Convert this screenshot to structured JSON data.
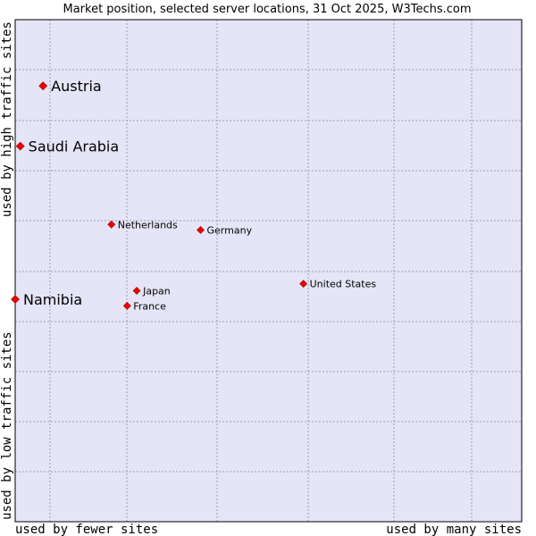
{
  "chart_data": {
    "type": "scatter",
    "title": "Market position, selected server locations, 31 Oct 2025, W3Techs.com",
    "xlabel_left": "used by fewer sites",
    "xlabel_right": "used by many sites",
    "ylabel_bottom": "used by low traffic sites",
    "ylabel_top": "used by high traffic sites",
    "xlim": [
      0,
      100
    ],
    "ylim": [
      0,
      100
    ],
    "grid": true,
    "colors": {
      "plot_bg": "#e5e5f7",
      "point": "#ee0000",
      "point_edge": "#990000",
      "grid": "#9d9db5",
      "frame": "#000000"
    },
    "points": [
      {
        "name": "Austria",
        "x": 5.5,
        "y": 86.8,
        "size": "large"
      },
      {
        "name": "Saudi Arabia",
        "x": 1.0,
        "y": 74.8,
        "size": "large"
      },
      {
        "name": "Netherlands",
        "x": 19.0,
        "y": 59.2,
        "size": "small"
      },
      {
        "name": "Germany",
        "x": 36.6,
        "y": 58.1,
        "size": "small"
      },
      {
        "name": "United States",
        "x": 56.9,
        "y": 47.4,
        "size": "small"
      },
      {
        "name": "Japan",
        "x": 24.0,
        "y": 46.0,
        "size": "small"
      },
      {
        "name": "Namibia",
        "x": 0.0,
        "y": 44.3,
        "size": "large"
      },
      {
        "name": "France",
        "x": 22.1,
        "y": 43.0,
        "size": "small"
      }
    ]
  }
}
